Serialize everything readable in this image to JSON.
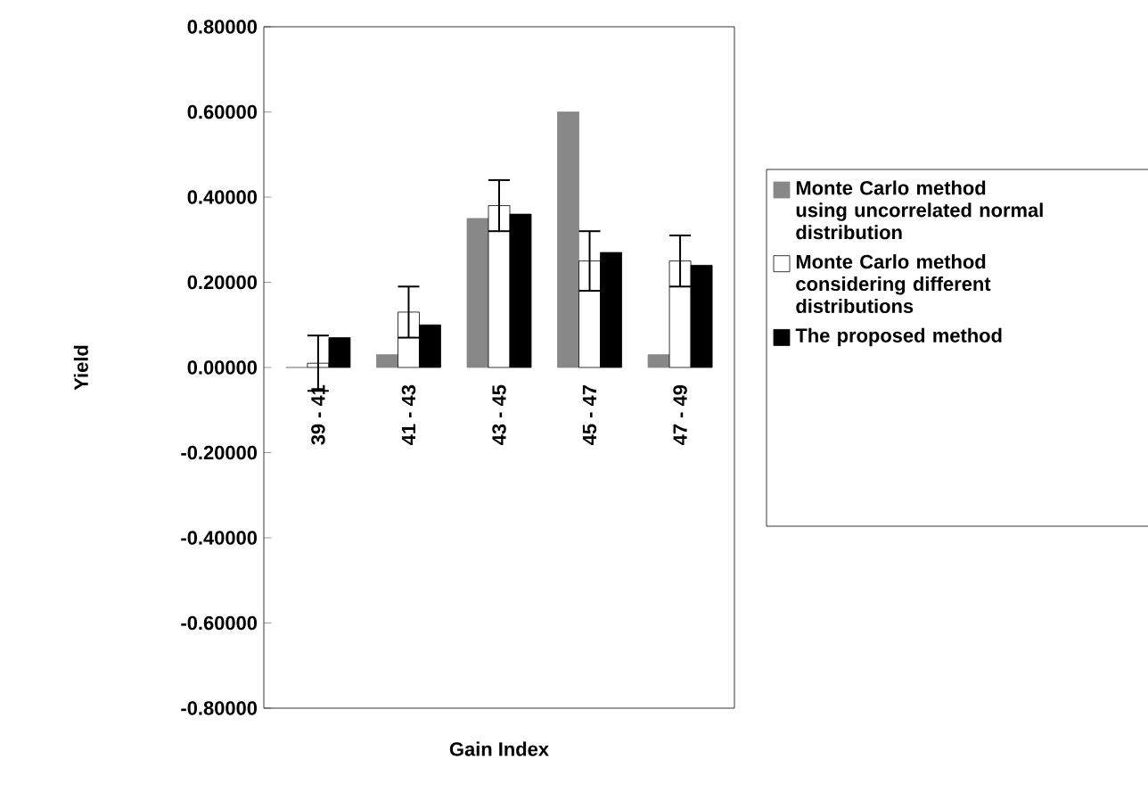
{
  "chart_data": {
    "type": "bar",
    "xlabel": "Gain Index",
    "ylabel": "Yield",
    "categories": [
      "39 - 41",
      "41 - 43",
      "43 - 45",
      "45 - 47",
      "47 - 49"
    ],
    "series": [
      {
        "name": "Monte Carlo method using uncorrelated normal distribution",
        "color": "#888888",
        "values": [
          0.0,
          0.03,
          0.35,
          0.6,
          0.03
        ]
      },
      {
        "name": "Monte Carlo method considering different distributions",
        "color": "#ffffff",
        "values": [
          0.01,
          0.13,
          0.38,
          0.25,
          0.25
        ],
        "errors": [
          0.065,
          0.06,
          0.06,
          0.07,
          0.06
        ]
      },
      {
        "name": "The proposed method",
        "color": "#000000",
        "values": [
          0.07,
          0.1,
          0.36,
          0.27,
          0.24
        ]
      }
    ],
    "ylim": [
      -0.8,
      0.8
    ],
    "yticks": [
      {
        "value": -0.8,
        "label": "-0.80000"
      },
      {
        "value": -0.6,
        "label": "-0.60000"
      },
      {
        "value": -0.4,
        "label": "-0.40000"
      },
      {
        "value": -0.2,
        "label": "-0.20000"
      },
      {
        "value": 0,
        "label": "0.00000"
      },
      {
        "value": 0.2,
        "label": "0.20000"
      },
      {
        "value": 0.4,
        "label": "0.40000"
      },
      {
        "value": 0.6,
        "label": "0.60000"
      },
      {
        "value": 0.8,
        "label": "0.80000"
      }
    ],
    "grid": false,
    "legend": "right"
  }
}
